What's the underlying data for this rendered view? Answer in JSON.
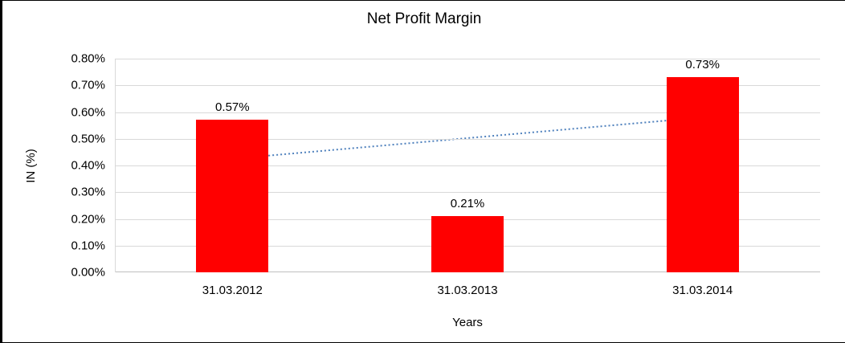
{
  "chart_data": {
    "type": "bar",
    "title": "Net Profit Margin",
    "xlabel": "Years",
    "ylabel": "IN (%)",
    "categories": [
      "31.03.2012",
      "31.03.2013",
      "31.03.2014"
    ],
    "values": [
      0.57,
      0.21,
      0.73
    ],
    "data_labels": [
      "0.57%",
      "0.21%",
      "0.73%"
    ],
    "ylim": [
      0,
      0.8
    ],
    "yticks": [
      {
        "value": 0.0,
        "label": "0.00%"
      },
      {
        "value": 0.1,
        "label": "0.10%"
      },
      {
        "value": 0.2,
        "label": "0.20%"
      },
      {
        "value": 0.3,
        "label": "0.30%"
      },
      {
        "value": 0.4,
        "label": "0.40%"
      },
      {
        "value": 0.5,
        "label": "0.50%"
      },
      {
        "value": 0.6,
        "label": "0.60%"
      },
      {
        "value": 0.7,
        "label": "0.70%"
      },
      {
        "value": 0.8,
        "label": "0.80%"
      }
    ],
    "grid": true,
    "legend": "none",
    "bar_color": "#FF0000",
    "gridline_color": "#D9D9D9",
    "axis_color": "#BFBFBF",
    "trendline": {
      "type": "linear",
      "style": "dotted",
      "color": "#4F81BD",
      "start_value": 0.425,
      "end_value": 0.58
    }
  }
}
